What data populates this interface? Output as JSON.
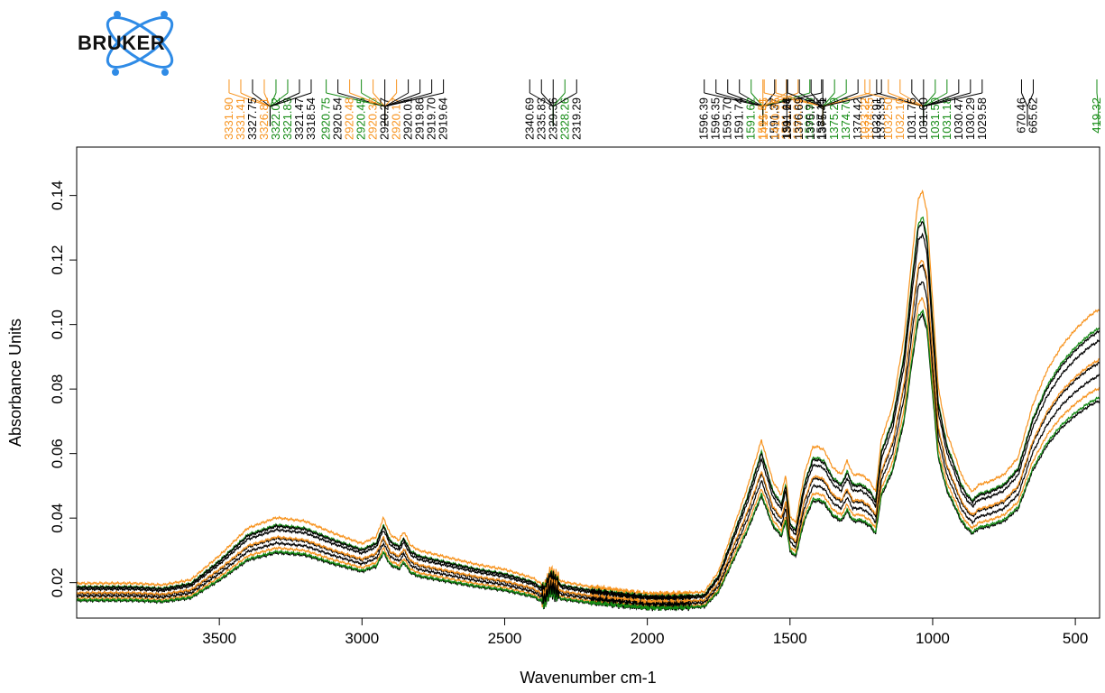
{
  "colors": {
    "black": "#000000",
    "orange": "#f7931e",
    "green": "#138a13",
    "logo_blue": "#2f8be6"
  },
  "logo": {
    "text": "BRUKER",
    "icon": "bruker-atom-logo-icon"
  },
  "chart_data": {
    "type": "line",
    "title": "",
    "xlabel": "Wavenumber cm-1",
    "ylabel": "Absorbance Units",
    "xlim": [
      4000,
      415
    ],
    "ylim": [
      0.009,
      0.155
    ],
    "x_reversed": true,
    "grid": false,
    "legend": "none",
    "xticks": [
      3500,
      3000,
      2500,
      2000,
      1500,
      1000,
      500
    ],
    "yticks": [
      0.02,
      0.04,
      0.06,
      0.08,
      0.1,
      0.12,
      0.14
    ],
    "ytick_labels": [
      "0.02",
      "0.04",
      "0.06",
      "0.08",
      "0.10",
      "0.12",
      "0.14"
    ],
    "base_profile": {
      "x": [
        4000,
        3800,
        3700,
        3600,
        3500,
        3400,
        3300,
        3200,
        3100,
        3000,
        2950,
        2925,
        2900,
        2870,
        2853,
        2830,
        2800,
        2700,
        2600,
        2500,
        2400,
        2360,
        2340,
        2300,
        2200,
        2100,
        2000,
        1900,
        1800,
        1750,
        1700,
        1650,
        1600,
        1560,
        1530,
        1515,
        1500,
        1480,
        1450,
        1420,
        1400,
        1380,
        1350,
        1320,
        1300,
        1280,
        1250,
        1220,
        1200,
        1180,
        1160,
        1140,
        1100,
        1070,
        1050,
        1035,
        1020,
        1000,
        980,
        950,
        920,
        900,
        880,
        860,
        840,
        800,
        750,
        700,
        650,
        600,
        550,
        500,
        450,
        415
      ],
      "y": [
        0.0185,
        0.0185,
        0.018,
        0.0195,
        0.0265,
        0.0345,
        0.0375,
        0.0365,
        0.033,
        0.03,
        0.032,
        0.0375,
        0.0325,
        0.031,
        0.0335,
        0.0295,
        0.028,
        0.026,
        0.024,
        0.0225,
        0.02,
        0.0175,
        0.022,
        0.019,
        0.0175,
        0.0165,
        0.0155,
        0.0155,
        0.016,
        0.022,
        0.034,
        0.046,
        0.06,
        0.048,
        0.044,
        0.05,
        0.038,
        0.036,
        0.05,
        0.058,
        0.058,
        0.057,
        0.052,
        0.05,
        0.054,
        0.05,
        0.05,
        0.048,
        0.045,
        0.06,
        0.065,
        0.07,
        0.09,
        0.115,
        0.13,
        0.132,
        0.126,
        0.1,
        0.075,
        0.062,
        0.055,
        0.05,
        0.047,
        0.045,
        0.047,
        0.048,
        0.05,
        0.055,
        0.07,
        0.08,
        0.087,
        0.092,
        0.096,
        0.098
      ]
    },
    "series": [
      {
        "color": "orange",
        "scale": 1.07
      },
      {
        "color": "green",
        "scale": 1.01
      },
      {
        "color": "black",
        "scale": 1.0
      },
      {
        "color": "black",
        "scale": 0.97
      },
      {
        "color": "black",
        "scale": 0.9
      },
      {
        "color": "orange",
        "scale": 0.91
      },
      {
        "color": "orange",
        "scale": 0.82
      },
      {
        "color": "black",
        "scale": 0.78
      },
      {
        "color": "green",
        "scale": 0.79
      },
      {
        "color": "black",
        "scale": 0.86
      }
    ],
    "peak_groups": [
      {
        "x": 3322,
        "labels": [
          {
            "text": "3331.90",
            "color": "orange"
          },
          {
            "text": "3331.41",
            "color": "orange"
          },
          {
            "text": "3327.75",
            "color": "black"
          },
          {
            "text": "3326.81",
            "color": "orange"
          },
          {
            "text": "3322.02",
            "color": "green"
          },
          {
            "text": "3321.83",
            "color": "green"
          },
          {
            "text": "3321.47",
            "color": "black"
          },
          {
            "text": "3318.54",
            "color": "black"
          }
        ]
      },
      {
        "x": 2920,
        "labels": [
          {
            "text": "2920.75",
            "color": "green"
          },
          {
            "text": "2920.54",
            "color": "black"
          },
          {
            "text": "2920.48",
            "color": "orange"
          },
          {
            "text": "2920.45",
            "color": "green"
          },
          {
            "text": "2920.36",
            "color": "orange"
          },
          {
            "text": "2920.27",
            "color": "black"
          },
          {
            "text": "2920.17",
            "color": "orange"
          },
          {
            "text": "2920.01",
            "color": "black"
          },
          {
            "text": "2919.86",
            "color": "black"
          },
          {
            "text": "2919.70",
            "color": "black"
          },
          {
            "text": "2919.64",
            "color": "black"
          }
        ]
      },
      {
        "x": 2330,
        "labels": [
          {
            "text": "2340.69",
            "color": "black"
          },
          {
            "text": "2335.83",
            "color": "black"
          },
          {
            "text": "2329.36",
            "color": "black"
          },
          {
            "text": "2328.26",
            "color": "green"
          },
          {
            "text": "2319.29",
            "color": "black"
          }
        ]
      },
      {
        "x": 1595,
        "labels": [
          {
            "text": "1596.39",
            "color": "black"
          },
          {
            "text": "1596.35",
            "color": "black"
          },
          {
            "text": "1595.70",
            "color": "black"
          },
          {
            "text": "1591.74",
            "color": "black"
          },
          {
            "text": "1591.62",
            "color": "green"
          },
          {
            "text": "1591.51",
            "color": "orange"
          },
          {
            "text": "1591.37",
            "color": "black"
          },
          {
            "text": "1591.19",
            "color": "orange"
          },
          {
            "text": "1590.96",
            "color": "orange"
          },
          {
            "text": "1590.93",
            "color": "green"
          },
          {
            "text": "1587.15",
            "color": "black"
          }
        ]
      },
      {
        "x": 1511,
        "labels": [
          {
            "text": "1511.66",
            "color": "black"
          }
        ]
      },
      {
        "x": 1385,
        "labels": [
          {
            "text": "1415.45",
            "color": "orange"
          },
          {
            "text": "1410.36",
            "color": "orange"
          },
          {
            "text": "1391.24",
            "color": "black"
          },
          {
            "text": "1376.69",
            "color": "black"
          },
          {
            "text": "1375.71",
            "color": "black"
          },
          {
            "text": "1375.41",
            "color": "black"
          },
          {
            "text": "1375.29",
            "color": "green"
          },
          {
            "text": "1374.70",
            "color": "green"
          },
          {
            "text": "1374.42",
            "color": "black"
          },
          {
            "text": "1374.35",
            "color": "orange"
          },
          {
            "text": "1373.35",
            "color": "black"
          }
        ]
      },
      {
        "x": 1032,
        "labels": [
          {
            "text": "1033.22",
            "color": "orange"
          },
          {
            "text": "1032.91",
            "color": "black"
          },
          {
            "text": "1032.50",
            "color": "orange"
          },
          {
            "text": "1032.10",
            "color": "orange"
          },
          {
            "text": "1031.75",
            "color": "black"
          },
          {
            "text": "1031.60",
            "color": "black"
          },
          {
            "text": "1031.50",
            "color": "green"
          },
          {
            "text": "1031.18",
            "color": "green"
          },
          {
            "text": "1030.47",
            "color": "black"
          },
          {
            "text": "1030.29",
            "color": "black"
          },
          {
            "text": "1029.58",
            "color": "black"
          }
        ]
      },
      {
        "x": 668,
        "labels": [
          {
            "text": "670.46",
            "color": "black"
          },
          {
            "text": "665.62",
            "color": "black"
          }
        ]
      },
      {
        "x": 419.32,
        "labels": [
          {
            "text": "419.32",
            "color": "green"
          }
        ]
      }
    ]
  }
}
